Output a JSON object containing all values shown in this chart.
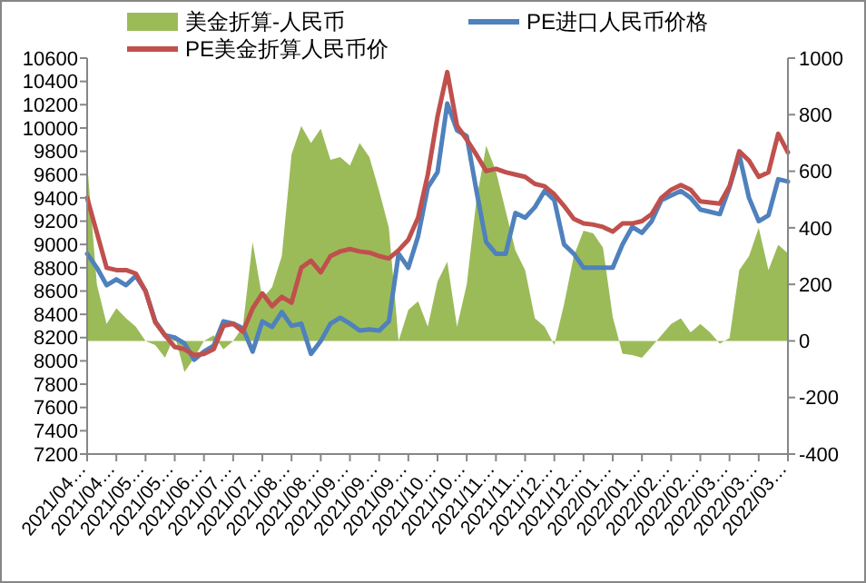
{
  "chart_data": {
    "type": "line",
    "categories": [
      "2021/04…",
      null,
      null,
      "2021/04…",
      null,
      null,
      "2021/05…",
      null,
      null,
      "2021/05…",
      null,
      null,
      "2021/06…",
      null,
      null,
      "2021/07…",
      null,
      null,
      "2021/07…",
      null,
      null,
      "2021/08…",
      null,
      null,
      "2021/08…",
      null,
      null,
      "2021/09…",
      null,
      null,
      "2021/09…",
      null,
      null,
      "2021/09…",
      null,
      null,
      "2021/10…",
      null,
      null,
      "2021/10…",
      null,
      null,
      "2021/11…",
      null,
      null,
      "2021/11…",
      null,
      null,
      "2021/12…",
      null,
      null,
      "2021/12…",
      null,
      null,
      "2022/01…",
      null,
      null,
      "2022/01…",
      null,
      null,
      "2022/02…",
      null,
      null,
      "2022/02…",
      null,
      null,
      "2022/03…",
      null,
      null,
      "2022/03…",
      null,
      null,
      "2022/03…"
    ],
    "series": [
      {
        "name": "美金折算-人民币",
        "type": "area",
        "axis": "y2",
        "color": "#9bbb59",
        "values": [
          630,
          200,
          60,
          115,
          80,
          50,
          0,
          -15,
          -60,
          20,
          -110,
          -60,
          0,
          20,
          -30,
          0,
          50,
          350,
          150,
          190,
          300,
          660,
          760,
          700,
          750,
          640,
          650,
          620,
          700,
          650,
          530,
          400,
          0,
          110,
          140,
          50,
          210,
          280,
          50,
          200,
          500,
          690,
          600,
          460,
          320,
          250,
          80,
          50,
          -15,
          130,
          300,
          390,
          380,
          330,
          85,
          -45,
          -50,
          -60,
          -20,
          20,
          60,
          80,
          30,
          60,
          30,
          -10,
          10,
          250,
          300,
          400,
          250,
          340,
          310
        ]
      },
      {
        "name": "PE进口人民币价格",
        "type": "line",
        "color": "#4f81bd",
        "values": [
          8920,
          8800,
          8650,
          8700,
          8650,
          8730,
          8600,
          8340,
          8220,
          8200,
          8150,
          8010,
          8080,
          8130,
          8340,
          8320,
          8280,
          8080,
          8340,
          8290,
          8420,
          8300,
          8320,
          8060,
          8170,
          8320,
          8370,
          8320,
          8260,
          8270,
          8260,
          8340,
          8920,
          8800,
          9070,
          9490,
          9620,
          10210,
          9980,
          9930,
          9460,
          9020,
          8920,
          8920,
          9270,
          9230,
          9320,
          9460,
          9380,
          9000,
          8920,
          8800,
          8800,
          8800,
          8800,
          9000,
          9150,
          9100,
          9200,
          9380,
          9420,
          9460,
          9400,
          9300,
          9280,
          9260,
          9490,
          9770,
          9400,
          9200,
          9250,
          9560,
          9540
        ]
      },
      {
        "name": "PE美金折算人民币价",
        "type": "line",
        "color": "#c0504d",
        "values": [
          9400,
          9100,
          8800,
          8780,
          8780,
          8750,
          8600,
          8330,
          8220,
          8120,
          8100,
          8050,
          8060,
          8100,
          8300,
          8320,
          8250,
          8450,
          8580,
          8470,
          8550,
          8500,
          8800,
          8860,
          8760,
          8900,
          8940,
          8960,
          8940,
          8930,
          8900,
          8880,
          8950,
          9040,
          9230,
          9600,
          10100,
          10480,
          10020,
          9900,
          9770,
          9630,
          9650,
          9620,
          9600,
          9580,
          9520,
          9500,
          9430,
          9330,
          9220,
          9180,
          9170,
          9150,
          9110,
          9180,
          9180,
          9200,
          9260,
          9400,
          9470,
          9510,
          9470,
          9370,
          9360,
          9350,
          9500,
          9800,
          9720,
          9580,
          9620,
          9950,
          9790
        ]
      }
    ],
    "ylim": [
      7200,
      10600
    ],
    "yticks": [
      7200,
      7400,
      7600,
      7800,
      8000,
      8200,
      8400,
      8600,
      8800,
      9000,
      9200,
      9400,
      9600,
      9800,
      10000,
      10200,
      10400,
      10600
    ],
    "y2lim": [
      -400,
      1000
    ],
    "y2ticks": [
      -400,
      -200,
      0,
      200,
      400,
      600,
      800,
      1000
    ],
    "grid": false,
    "legend": "top",
    "marker": "none",
    "line_style": "solid"
  }
}
